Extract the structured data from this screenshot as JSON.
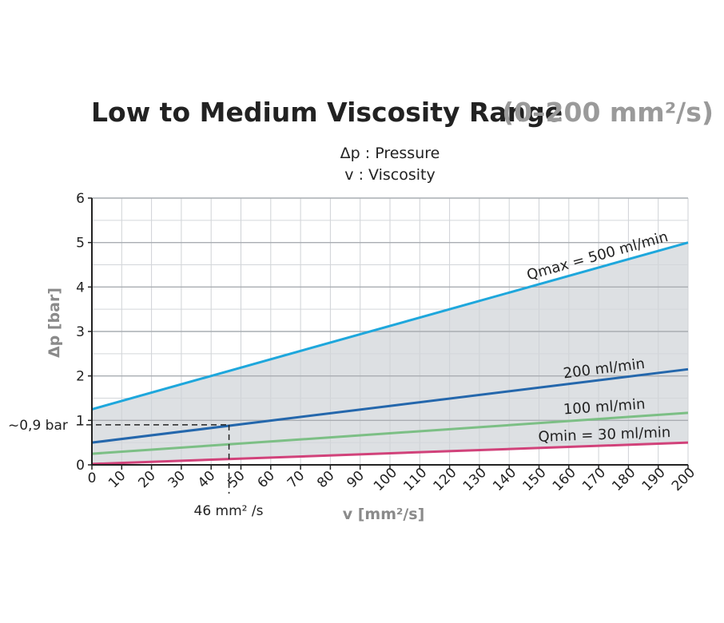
{
  "chart_data": {
    "type": "line",
    "title": "Low to Medium Viscosity Range",
    "subtitle": "(0–200 mm²/s)",
    "legend": [
      "Δp : Pressure",
      "v : Viscosity"
    ],
    "xlabel": "v [mm²/s]",
    "ylabel": "Δp [bar]",
    "xlim": [
      0,
      200
    ],
    "ylim": [
      0,
      6
    ],
    "x_ticks": [
      "0",
      "10",
      "20",
      "30",
      "40",
      "50",
      "60",
      "70",
      "80",
      "90",
      "100",
      "110",
      "120",
      "130",
      "140",
      "150",
      "160",
      "170",
      "180",
      "190",
      "200"
    ],
    "y_ticks": [
      "0",
      "1",
      "2",
      "3",
      "4",
      "5",
      "6"
    ],
    "grid": true,
    "x_minor_grid_step": 10,
    "y_minor_grid_step": 0.5,
    "shaded_band": {
      "between": [
        "Qmax = 500 ml/min",
        "Qmin = 30 ml/min"
      ],
      "color": "#dde0e3"
    },
    "series": [
      {
        "name": "Qmax = 500 ml/min",
        "color": "#1ea7dc",
        "x": [
          0,
          200
        ],
        "y": [
          1.25,
          5.0
        ]
      },
      {
        "name": "200 ml/min",
        "color": "#2467ac",
        "x": [
          0,
          200
        ],
        "y": [
          0.5,
          2.15
        ]
      },
      {
        "name": "100 ml/min",
        "color": "#7cbf85",
        "x": [
          0,
          200
        ],
        "y": [
          0.25,
          1.17
        ]
      },
      {
        "name": "Qmin = 30 ml/min",
        "color": "#d1427a",
        "x": [
          0,
          200
        ],
        "y": [
          0.02,
          0.5
        ]
      }
    ],
    "annotations": [
      {
        "label": "~0,9 bar",
        "y": 0.9
      },
      {
        "label": "46 mm² /s",
        "x": 46
      }
    ]
  }
}
